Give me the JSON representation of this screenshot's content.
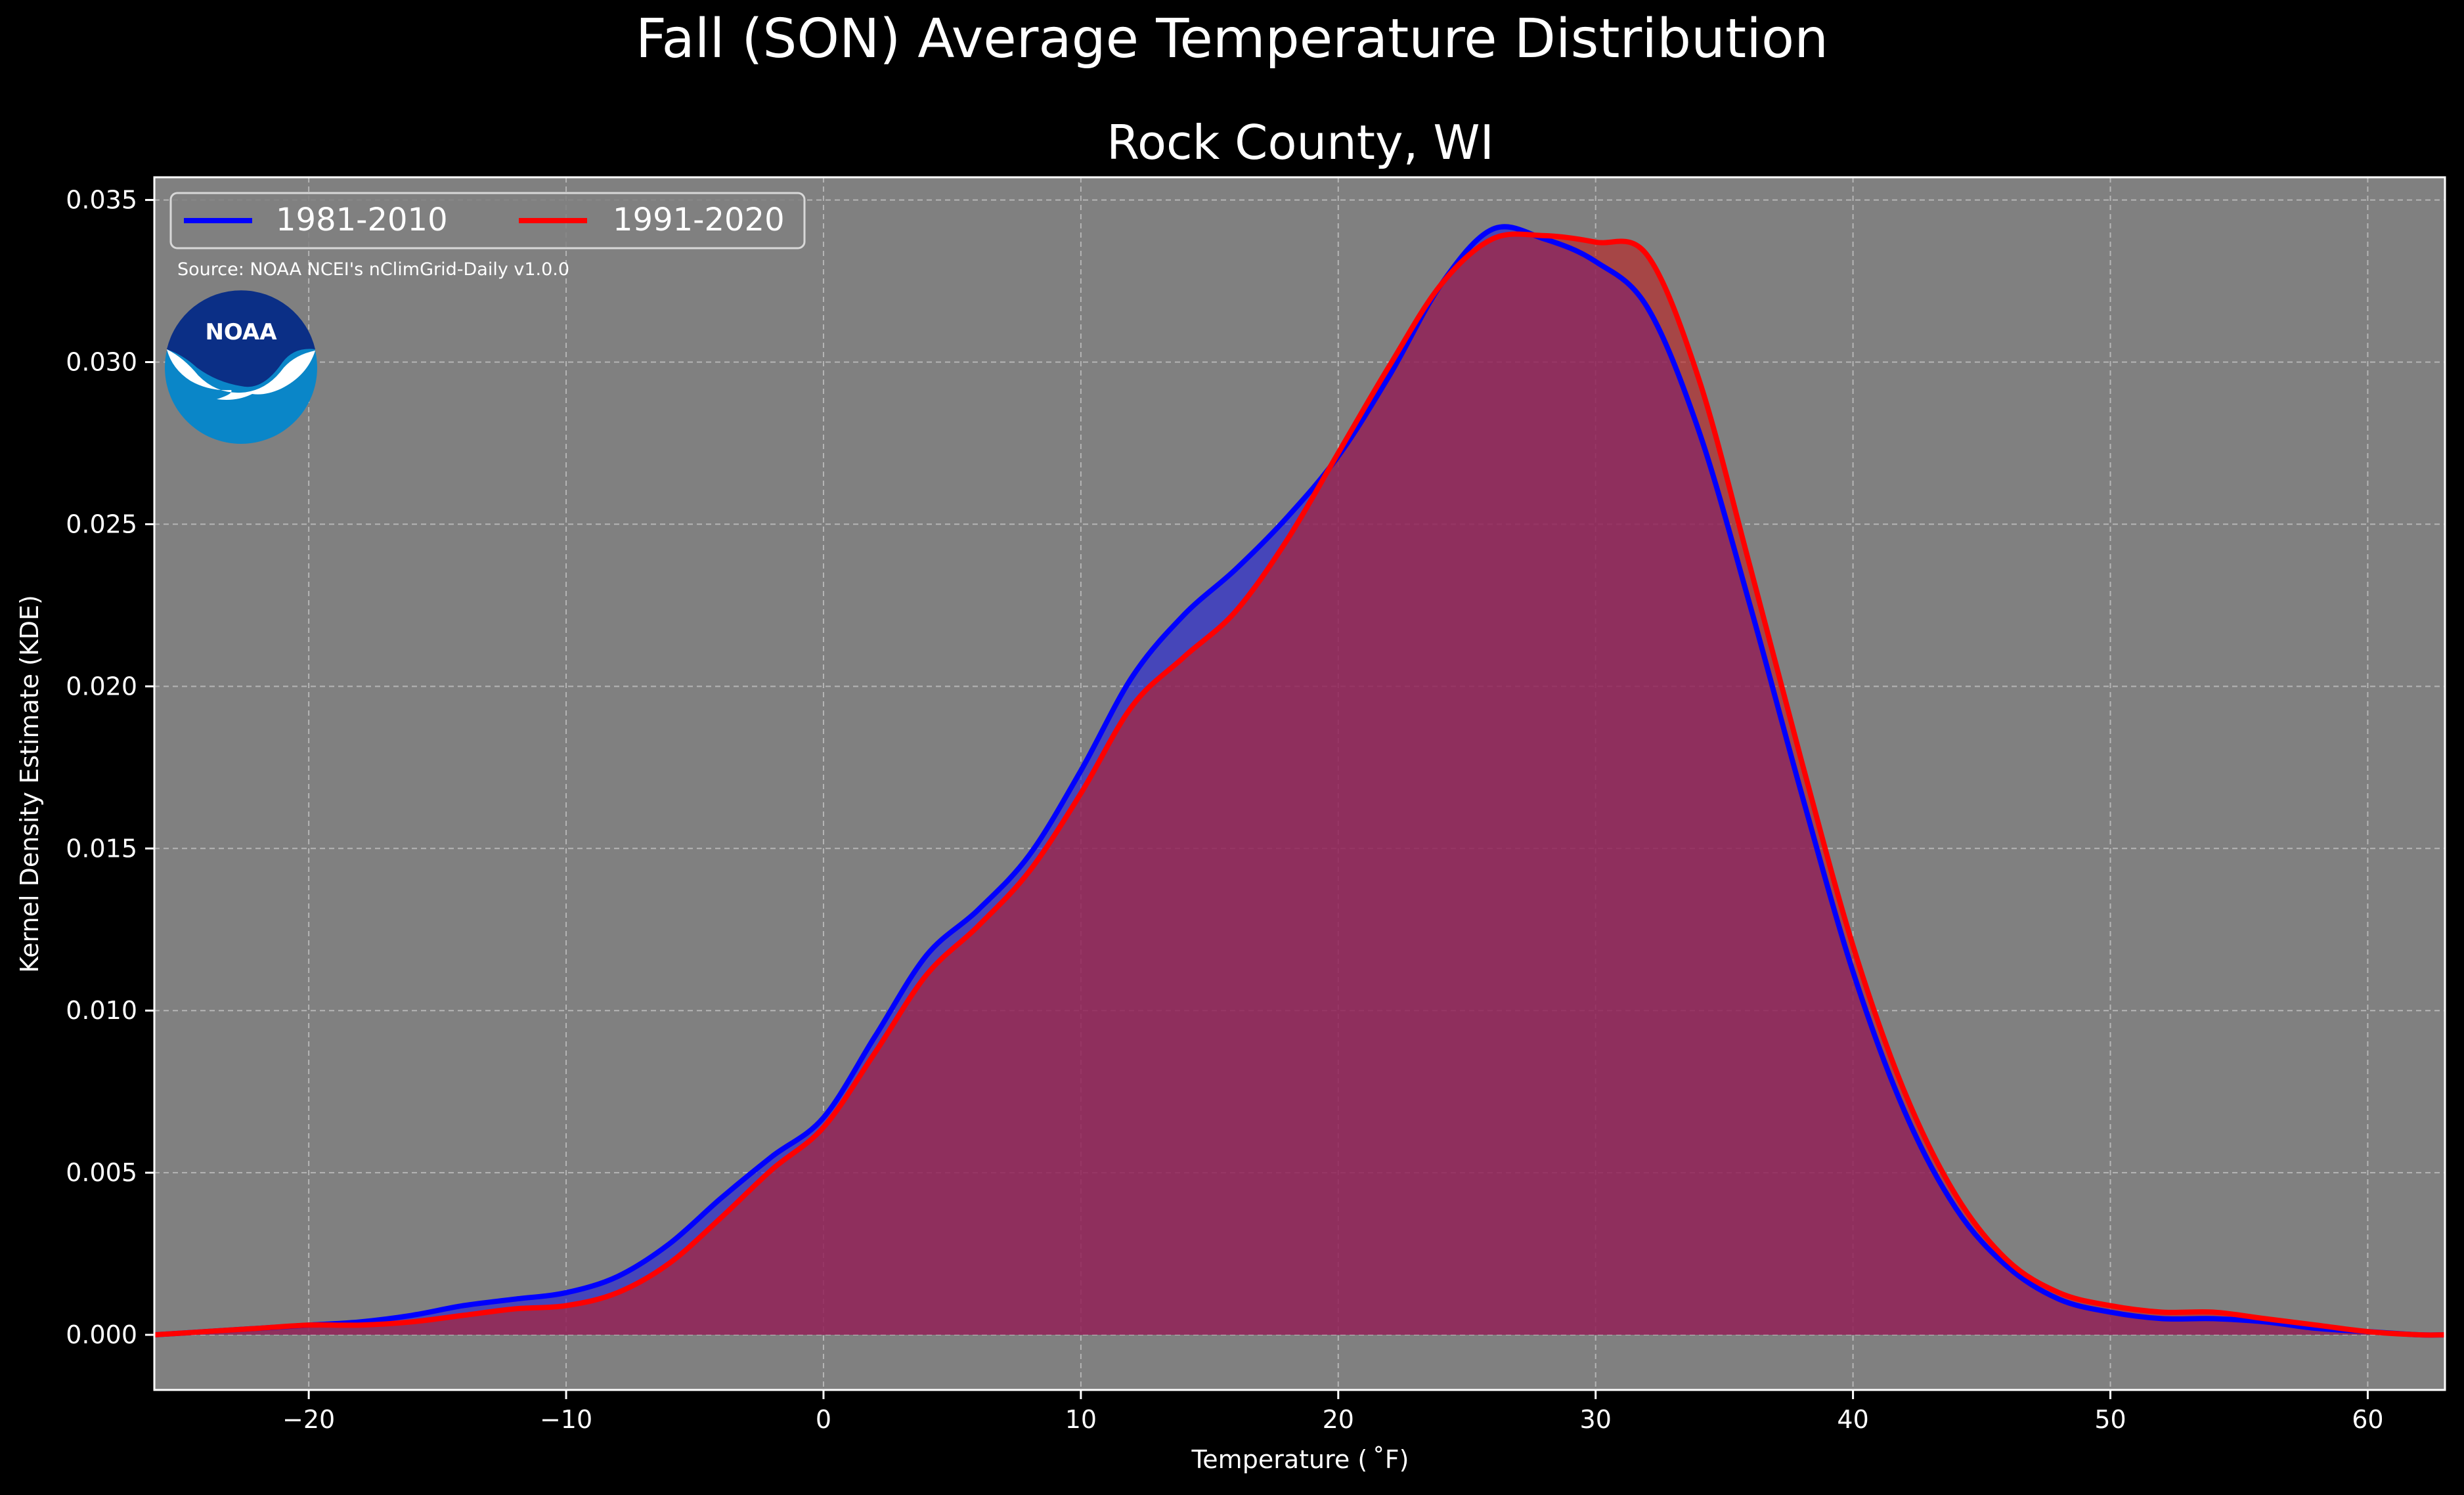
{
  "chart_data": {
    "type": "area",
    "suptitle": "Fall (SON) Average Temperature Distribution",
    "title": "Rock County, WI",
    "xlabel": "Temperature ($^\\circ$F)",
    "xlabel_display": "Temperature ( ˚F)",
    "ylabel": "Kernel Density Estimate (KDE)",
    "xlim": [
      -26,
      63
    ],
    "ylim": [
      -0.0017,
      0.0357
    ],
    "xticks": [
      -20,
      -10,
      0,
      10,
      20,
      30,
      40,
      50,
      60
    ],
    "xtick_labels": [
      "−20",
      "−10",
      "0",
      "10",
      "20",
      "30",
      "40",
      "50",
      "60"
    ],
    "yticks": [
      0.0,
      0.005,
      0.01,
      0.015,
      0.02,
      0.025,
      0.03,
      0.035
    ],
    "ytick_labels": [
      "0.000",
      "0.005",
      "0.010",
      "0.015",
      "0.020",
      "0.025",
      "0.030",
      "0.035"
    ],
    "grid": true,
    "legend_position": "top-left",
    "source_note": "Source: NOAA NCEI's nClimGrid-Daily v1.0.0",
    "logo_text": "NOAA",
    "background_color": "#808080",
    "x": [
      -26,
      -24,
      -22,
      -20,
      -18,
      -16,
      -14,
      -12,
      -10,
      -8,
      -6,
      -4,
      -2,
      0,
      2,
      4,
      6,
      8,
      10,
      12,
      14,
      16,
      18,
      20,
      22,
      24,
      26,
      28,
      30,
      32,
      34,
      36,
      38,
      40,
      42,
      44,
      46,
      48,
      50,
      52,
      54,
      56,
      58,
      60,
      62,
      63
    ],
    "series": [
      {
        "name": "1981-2010",
        "color": "#0000ff",
        "fill": "#2020e0",
        "values": [
          0.0,
          0.0001,
          0.0002,
          0.0003,
          0.0004,
          0.0006,
          0.0009,
          0.0011,
          0.0013,
          0.0018,
          0.0028,
          0.0042,
          0.0055,
          0.0067,
          0.0092,
          0.0117,
          0.0131,
          0.0148,
          0.0174,
          0.0203,
          0.0222,
          0.0236,
          0.0252,
          0.0271,
          0.0296,
          0.0324,
          0.0341,
          0.0338,
          0.0331,
          0.0317,
          0.0279,
          0.0225,
          0.0167,
          0.0112,
          0.0069,
          0.0039,
          0.0021,
          0.0011,
          0.0007,
          0.0005,
          0.0005,
          0.0004,
          0.0002,
          0.0001,
          0.0,
          0.0
        ]
      },
      {
        "name": "1991-2020",
        "color": "#ff0000",
        "fill": "#c02020",
        "values": [
          0.0,
          0.0001,
          0.0002,
          0.0003,
          0.0003,
          0.0004,
          0.0006,
          0.0008,
          0.0009,
          0.0013,
          0.0022,
          0.0036,
          0.0051,
          0.0064,
          0.0087,
          0.0111,
          0.0126,
          0.0143,
          0.0167,
          0.0194,
          0.0209,
          0.0223,
          0.0245,
          0.0272,
          0.0299,
          0.0324,
          0.0338,
          0.0339,
          0.0337,
          0.0333,
          0.0295,
          0.0237,
          0.0177,
          0.012,
          0.0075,
          0.0043,
          0.0023,
          0.0013,
          0.0009,
          0.0007,
          0.0007,
          0.0005,
          0.0003,
          0.0001,
          0.0,
          0.0
        ]
      }
    ]
  }
}
